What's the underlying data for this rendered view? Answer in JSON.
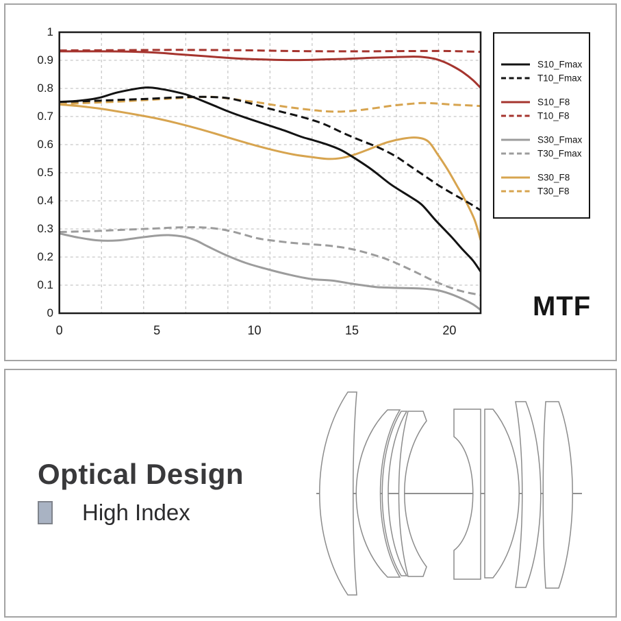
{
  "mtf_panel": {
    "corner_label": "MTF"
  },
  "chart_data": {
    "type": "line",
    "title": "MTF",
    "xlabel": "",
    "ylabel": "",
    "xlim": [
      0,
      21.6
    ],
    "ylim": [
      0,
      1
    ],
    "x_ticks": [
      0,
      5,
      10,
      15,
      20
    ],
    "y_tick_labels": [
      "0",
      "0.1",
      "0.2",
      "0.3",
      "0.4",
      "0.5",
      "0.6",
      "0.7",
      "0.8",
      "0.9",
      "1"
    ],
    "grid": true,
    "grid_divisions_x": 10,
    "grid_divisions_y": 10,
    "grid_color": "#c8c8c8",
    "frame_color": "#1b1b1b",
    "legend_position": "outside-right",
    "legend_group_size": 2,
    "series": [
      {
        "name": "S10_Fmax",
        "color": "#131313",
        "dash": false,
        "points": [
          [
            0,
            0.752
          ],
          [
            1,
            0.756
          ],
          [
            2,
            0.766
          ],
          [
            3,
            0.786
          ],
          [
            4.4,
            0.803
          ],
          [
            5.2,
            0.798
          ],
          [
            6,
            0.787
          ],
          [
            6.6,
            0.776
          ],
          [
            7.3,
            0.757
          ],
          [
            8,
            0.737
          ],
          [
            8.7,
            0.717
          ],
          [
            9.5,
            0.697
          ],
          [
            10.5,
            0.674
          ],
          [
            11.5,
            0.651
          ],
          [
            12.4,
            0.628
          ],
          [
            13,
            0.616
          ],
          [
            13.7,
            0.601
          ],
          [
            14.4,
            0.582
          ],
          [
            15,
            0.558
          ],
          [
            16,
            0.512
          ],
          [
            17,
            0.458
          ],
          [
            18,
            0.414
          ],
          [
            18.6,
            0.385
          ],
          [
            19.3,
            0.33
          ],
          [
            20.1,
            0.272
          ],
          [
            20.7,
            0.225
          ],
          [
            21.2,
            0.188
          ],
          [
            21.6,
            0.148
          ]
        ]
      },
      {
        "name": "T10_Fmax",
        "color": "#131313",
        "dash": true,
        "points": [
          [
            0,
            0.752
          ],
          [
            1.5,
            0.755
          ],
          [
            3,
            0.759
          ],
          [
            4.5,
            0.763
          ],
          [
            6,
            0.768
          ],
          [
            7,
            0.77
          ],
          [
            8,
            0.769
          ],
          [
            8.7,
            0.765
          ],
          [
            9.5,
            0.752
          ],
          [
            10.5,
            0.733
          ],
          [
            11.5,
            0.715
          ],
          [
            12.5,
            0.697
          ],
          [
            13.5,
            0.675
          ],
          [
            14.5,
            0.643
          ],
          [
            15.2,
            0.622
          ],
          [
            16,
            0.6
          ],
          [
            16.6,
            0.582
          ],
          [
            17.3,
            0.556
          ],
          [
            18,
            0.523
          ],
          [
            18.7,
            0.49
          ],
          [
            19.4,
            0.457
          ],
          [
            20,
            0.432
          ],
          [
            20.6,
            0.408
          ],
          [
            21.1,
            0.388
          ],
          [
            21.6,
            0.366
          ]
        ]
      },
      {
        "name": "S10_F8",
        "color": "#a5342e",
        "dash": false,
        "points": [
          [
            0,
            0.932
          ],
          [
            2,
            0.932
          ],
          [
            3.5,
            0.931
          ],
          [
            5,
            0.927
          ],
          [
            6,
            0.922
          ],
          [
            7,
            0.917
          ],
          [
            8,
            0.912
          ],
          [
            9,
            0.907
          ],
          [
            10,
            0.904
          ],
          [
            11,
            0.902
          ],
          [
            12,
            0.901
          ],
          [
            13,
            0.902
          ],
          [
            14,
            0.904
          ],
          [
            15,
            0.906
          ],
          [
            16,
            0.909
          ],
          [
            17,
            0.911
          ],
          [
            18,
            0.913
          ],
          [
            18.6,
            0.912
          ],
          [
            19.2,
            0.906
          ],
          [
            19.7,
            0.895
          ],
          [
            20.2,
            0.878
          ],
          [
            20.7,
            0.857
          ],
          [
            21.2,
            0.83
          ],
          [
            21.6,
            0.802
          ]
        ]
      },
      {
        "name": "T10_F8",
        "color": "#a5342e",
        "dash": true,
        "points": [
          [
            0,
            0.935
          ],
          [
            3,
            0.936
          ],
          [
            6,
            0.937
          ],
          [
            9,
            0.936
          ],
          [
            12,
            0.933
          ],
          [
            14,
            0.932
          ],
          [
            16,
            0.932
          ],
          [
            18,
            0.933
          ],
          [
            20,
            0.933
          ],
          [
            21.6,
            0.93
          ]
        ]
      },
      {
        "name": "S30_Fmax",
        "color": "#9c9c9c",
        "dash": false,
        "points": [
          [
            0,
            0.284
          ],
          [
            1,
            0.269
          ],
          [
            2,
            0.259
          ],
          [
            3,
            0.259
          ],
          [
            4,
            0.268
          ],
          [
            5,
            0.276
          ],
          [
            5.6,
            0.278
          ],
          [
            6.4,
            0.272
          ],
          [
            7,
            0.259
          ],
          [
            7.6,
            0.238
          ],
          [
            8.6,
            0.205
          ],
          [
            9.6,
            0.178
          ],
          [
            10.7,
            0.156
          ],
          [
            11.8,
            0.137
          ],
          [
            12.9,
            0.122
          ],
          [
            14,
            0.116
          ],
          [
            15,
            0.105
          ],
          [
            15.8,
            0.097
          ],
          [
            16.5,
            0.092
          ],
          [
            17.5,
            0.09
          ],
          [
            18.5,
            0.088
          ],
          [
            19.3,
            0.083
          ],
          [
            20,
            0.07
          ],
          [
            20.7,
            0.05
          ],
          [
            21.2,
            0.032
          ],
          [
            21.6,
            0.012
          ]
        ]
      },
      {
        "name": "T30_Fmax",
        "color": "#9c9c9c",
        "dash": true,
        "points": [
          [
            0,
            0.289
          ],
          [
            1,
            0.291
          ],
          [
            2,
            0.293
          ],
          [
            3,
            0.296
          ],
          [
            4,
            0.299
          ],
          [
            5,
            0.302
          ],
          [
            6,
            0.305
          ],
          [
            7,
            0.306
          ],
          [
            7.8,
            0.303
          ],
          [
            8.6,
            0.295
          ],
          [
            9.4,
            0.281
          ],
          [
            10.2,
            0.266
          ],
          [
            11,
            0.258
          ],
          [
            12,
            0.25
          ],
          [
            13,
            0.245
          ],
          [
            14,
            0.239
          ],
          [
            15,
            0.228
          ],
          [
            16,
            0.21
          ],
          [
            16.8,
            0.192
          ],
          [
            17.6,
            0.168
          ],
          [
            18.4,
            0.142
          ],
          [
            19.1,
            0.118
          ],
          [
            19.9,
            0.095
          ],
          [
            20.6,
            0.079
          ],
          [
            21.1,
            0.071
          ],
          [
            21.6,
            0.065
          ]
        ]
      },
      {
        "name": "S30_F8",
        "color": "#d7a44f",
        "dash": false,
        "points": [
          [
            0,
            0.743
          ],
          [
            1,
            0.737
          ],
          [
            2,
            0.729
          ],
          [
            3,
            0.718
          ],
          [
            4,
            0.706
          ],
          [
            5,
            0.693
          ],
          [
            6,
            0.677
          ],
          [
            7,
            0.659
          ],
          [
            8,
            0.639
          ],
          [
            9,
            0.618
          ],
          [
            10,
            0.598
          ],
          [
            11,
            0.58
          ],
          [
            12,
            0.565
          ],
          [
            13,
            0.555
          ],
          [
            13.8,
            0.549
          ],
          [
            14.5,
            0.553
          ],
          [
            15.2,
            0.566
          ],
          [
            16,
            0.587
          ],
          [
            16.8,
            0.608
          ],
          [
            17.6,
            0.621
          ],
          [
            18.3,
            0.625
          ],
          [
            18.9,
            0.612
          ],
          [
            19.4,
            0.565
          ],
          [
            19.9,
            0.512
          ],
          [
            20.4,
            0.452
          ],
          [
            20.9,
            0.39
          ],
          [
            21.3,
            0.33
          ],
          [
            21.6,
            0.26
          ]
        ]
      },
      {
        "name": "T30_F8",
        "color": "#d7a44f",
        "dash": true,
        "points": [
          [
            0,
            0.744
          ],
          [
            1,
            0.747
          ],
          [
            2,
            0.75
          ],
          [
            3,
            0.753
          ],
          [
            4,
            0.757
          ],
          [
            5,
            0.761
          ],
          [
            6,
            0.765
          ],
          [
            7,
            0.769
          ],
          [
            7.8,
            0.77
          ],
          [
            8.6,
            0.765
          ],
          [
            9.4,
            0.757
          ],
          [
            10.2,
            0.75
          ],
          [
            11,
            0.741
          ],
          [
            12,
            0.731
          ],
          [
            13,
            0.723
          ],
          [
            13.8,
            0.718
          ],
          [
            14.6,
            0.718
          ],
          [
            15.4,
            0.723
          ],
          [
            16.2,
            0.73
          ],
          [
            17,
            0.738
          ],
          [
            17.8,
            0.744
          ],
          [
            18.6,
            0.748
          ],
          [
            19.4,
            0.746
          ],
          [
            20.2,
            0.742
          ],
          [
            20.9,
            0.74
          ],
          [
            21.6,
            0.737
          ]
        ]
      }
    ]
  },
  "optical_panel": {
    "title": "Optical Design",
    "legend_swatch_label": "High Index",
    "high_index_color": "#a9b3c3",
    "lens_outline_color": "#8b8b8b",
    "element_count": 8,
    "high_index_elements": [
      7,
      8
    ]
  }
}
